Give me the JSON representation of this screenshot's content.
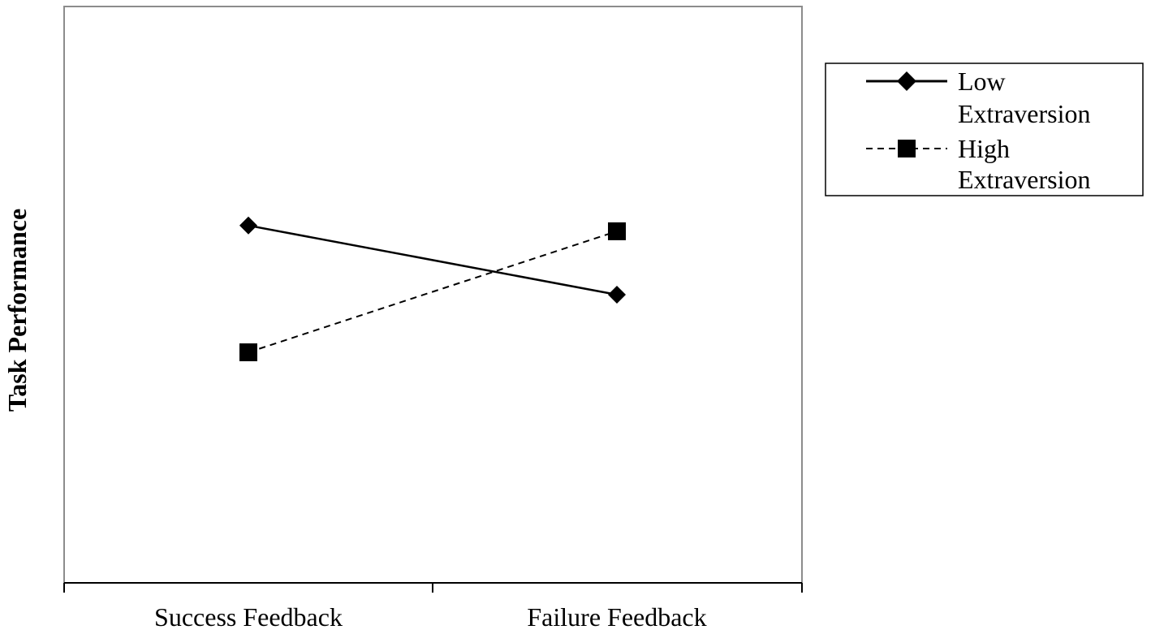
{
  "chart_data": {
    "type": "line",
    "categories": [
      "Success Feedback",
      "Failure Feedback"
    ],
    "ylabel": "Task Performance",
    "xlabel": "",
    "title": "",
    "ylim": [
      0,
      10
    ],
    "grid": false,
    "legend_position": "right",
    "series": [
      {
        "name_lines": [
          "Low",
          "Extraversion"
        ],
        "values": [
          6.2,
          5.0
        ],
        "marker": "diamond",
        "line_style": "solid",
        "color": "#000000"
      },
      {
        "name_lines": [
          "High",
          "Extraversion"
        ],
        "values": [
          4.0,
          6.1
        ],
        "marker": "square",
        "line_style": "dashed",
        "color": "#000000"
      }
    ]
  }
}
